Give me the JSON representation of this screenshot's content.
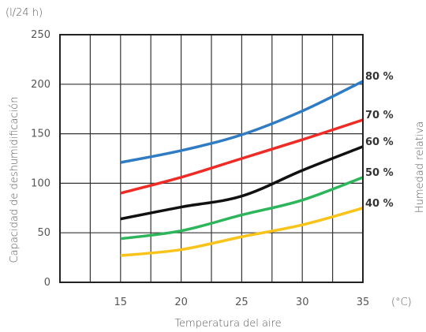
{
  "chart_data": {
    "type": "line",
    "xlabel": "Temperatura del aire",
    "ylabel": "Capacidad de deshumidificación",
    "y_unit": "(l/24 h)",
    "x_unit": "(°C)",
    "right_label": "Humedad relativa",
    "x": [
      15,
      20,
      25,
      30,
      35
    ],
    "xlim": [
      10,
      35
    ],
    "ylim": [
      0,
      250
    ],
    "x_ticks": [
      "15",
      "20",
      "25",
      "30",
      "35"
    ],
    "y_ticks": [
      "0",
      "50",
      "100",
      "150",
      "200",
      "250"
    ],
    "grid": true,
    "legend": "inline-right",
    "series": [
      {
        "name": "80 %",
        "color": "#2f7cc4",
        "values": [
          121,
          133,
          149,
          173,
          203
        ]
      },
      {
        "name": "70 %",
        "color": "#ee2b24",
        "values": [
          90,
          106,
          125,
          144,
          164
        ]
      },
      {
        "name": "60 %",
        "color": "#111111",
        "values": [
          64,
          76,
          87,
          113,
          137
        ]
      },
      {
        "name": "50 %",
        "color": "#2db55b",
        "values": [
          44,
          52,
          68,
          83,
          106
        ]
      },
      {
        "name": "40 %",
        "color": "#f9c31a",
        "values": [
          27,
          33,
          46,
          58,
          75
        ]
      }
    ]
  }
}
